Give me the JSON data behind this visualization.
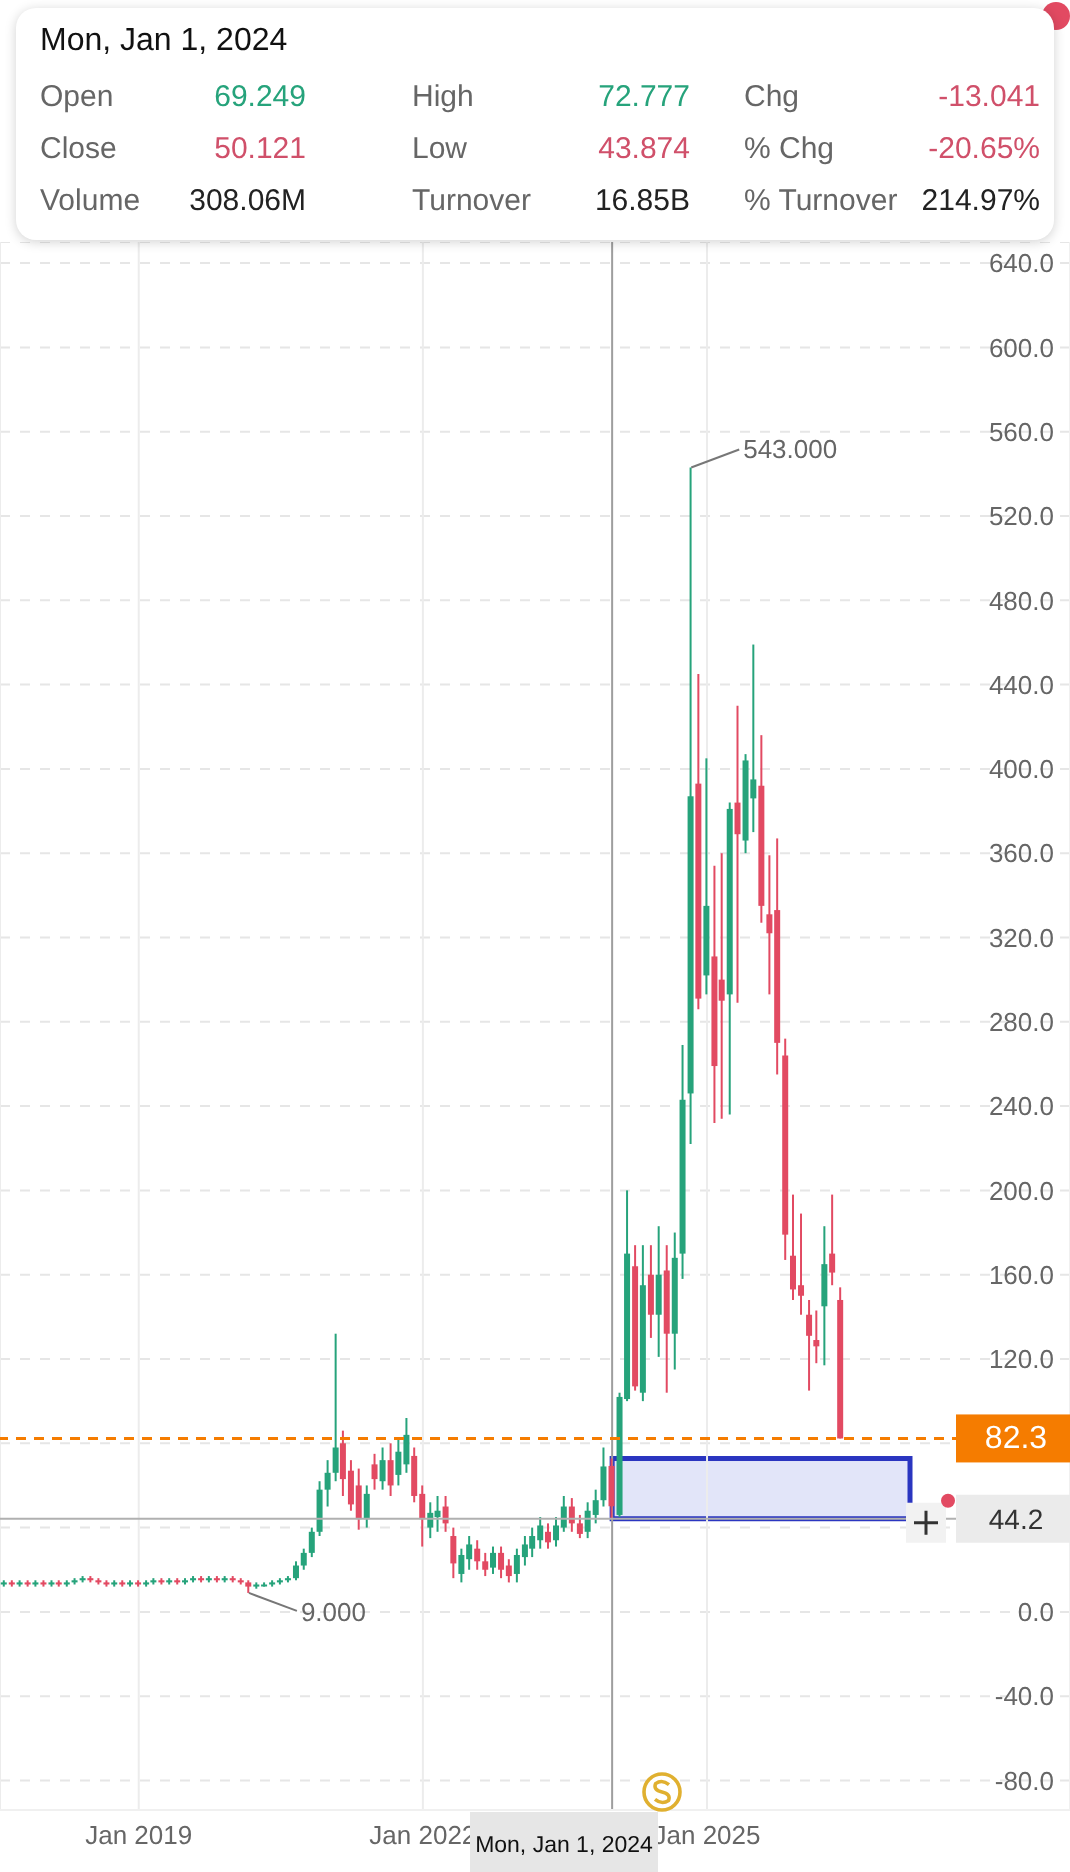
{
  "chart_data": {
    "type": "candlestick",
    "x": [
      "2017-08",
      "2017-09",
      "2017-10",
      "2017-11",
      "2017-12",
      "2018-01",
      "2018-02",
      "2018-03",
      "2018-04",
      "2018-05",
      "2018-06",
      "2018-07",
      "2018-08",
      "2018-09",
      "2018-10",
      "2018-11",
      "2018-12",
      "2019-01",
      "2019-02",
      "2019-03",
      "2019-04",
      "2019-05",
      "2019-06",
      "2019-07",
      "2019-08",
      "2019-09",
      "2019-10",
      "2019-11",
      "2019-12",
      "2020-01",
      "2020-02",
      "2020-03",
      "2020-04",
      "2020-05",
      "2020-06",
      "2020-07",
      "2020-08",
      "2020-09",
      "2020-10",
      "2020-11",
      "2020-12",
      "2021-01",
      "2021-02",
      "2021-03",
      "2021-04",
      "2021-05",
      "2021-06",
      "2021-07",
      "2021-08",
      "2021-09",
      "2021-10",
      "2021-11",
      "2021-12",
      "2022-01",
      "2022-02",
      "2022-03",
      "2022-04",
      "2022-05",
      "2022-06",
      "2022-07",
      "2022-08",
      "2022-09",
      "2022-10",
      "2022-11",
      "2022-12",
      "2023-01",
      "2023-02",
      "2023-03",
      "2023-04",
      "2023-05",
      "2023-06",
      "2023-07",
      "2023-08",
      "2023-09",
      "2023-10",
      "2023-11",
      "2023-12",
      "2024-01",
      "2024-02",
      "2024-03",
      "2024-04",
      "2024-05",
      "2024-06",
      "2024-07",
      "2024-08",
      "2024-09",
      "2024-10",
      "2024-11",
      "2024-12",
      "2025-01",
      "2025-02",
      "2025-03",
      "2025-04",
      "2025-05",
      "2025-06",
      "2025-07",
      "2025-08",
      "2025-09",
      "2025-10",
      "2025-11",
      "2025-12",
      "2026-01",
      "2026-02",
      "2026-03",
      "2026-04",
      "2026-05",
      "2026-06"
    ],
    "ohlc": [
      [
        13,
        15,
        12,
        14
      ],
      [
        14,
        15,
        12,
        13
      ],
      [
        13,
        15,
        12,
        14
      ],
      [
        14,
        15,
        12,
        13
      ],
      [
        13,
        15,
        12,
        14
      ],
      [
        14,
        15,
        12,
        13
      ],
      [
        13,
        15,
        12,
        14
      ],
      [
        14,
        15,
        12,
        13
      ],
      [
        13,
        15,
        12,
        14
      ],
      [
        14,
        16,
        13,
        15
      ],
      [
        15,
        17,
        14,
        16
      ],
      [
        16,
        17,
        14,
        15
      ],
      [
        15,
        16,
        13,
        14
      ],
      [
        14,
        15,
        12,
        13
      ],
      [
        13,
        15,
        12,
        14
      ],
      [
        14,
        15,
        12,
        13
      ],
      [
        13,
        15,
        12,
        14
      ],
      [
        14,
        15,
        12,
        13
      ],
      [
        13,
        15,
        12,
        14
      ],
      [
        14,
        16,
        13,
        15
      ],
      [
        15,
        16,
        13,
        14
      ],
      [
        14,
        16,
        13,
        15
      ],
      [
        15,
        16,
        13,
        14
      ],
      [
        14,
        16,
        13,
        15
      ],
      [
        15,
        17,
        14,
        16
      ],
      [
        16,
        17,
        14,
        15
      ],
      [
        15,
        17,
        14,
        16
      ],
      [
        16,
        17,
        14,
        15
      ],
      [
        15,
        17,
        14,
        16
      ],
      [
        16,
        17,
        14,
        15
      ],
      [
        15,
        16,
        13,
        14
      ],
      [
        14,
        15,
        9,
        12
      ],
      [
        12,
        14,
        11,
        13
      ],
      [
        13,
        14,
        12,
        13
      ],
      [
        13,
        15,
        12,
        14
      ],
      [
        14,
        16,
        13,
        15
      ],
      [
        15,
        17,
        14,
        16
      ],
      [
        16,
        24,
        15,
        22
      ],
      [
        22,
        30,
        20,
        28
      ],
      [
        28,
        40,
        26,
        38
      ],
      [
        38,
        62,
        36,
        58
      ],
      [
        58,
        72,
        50,
        66
      ],
      [
        66,
        132,
        62,
        78
      ],
      [
        80,
        86,
        55,
        63
      ],
      [
        67,
        72,
        48,
        51
      ],
      [
        60,
        68,
        39,
        44
      ],
      [
        44,
        60,
        40,
        56
      ],
      [
        70,
        75,
        58,
        63
      ],
      [
        62,
        78,
        58,
        72
      ],
      [
        72,
        80,
        55,
        60
      ],
      [
        65,
        82,
        60,
        76
      ],
      [
        70,
        92,
        66,
        84
      ],
      [
        74,
        78,
        52,
        55
      ],
      [
        56,
        60,
        31,
        44
      ],
      [
        40,
        52,
        35,
        47
      ],
      [
        45,
        55,
        38,
        48
      ],
      [
        50,
        55,
        38,
        42
      ],
      [
        36,
        40,
        16,
        23
      ],
      [
        18,
        30,
        14,
        27
      ],
      [
        25,
        36,
        20,
        32
      ],
      [
        30,
        34,
        20,
        24
      ],
      [
        24,
        28,
        17,
        20
      ],
      [
        21,
        31,
        18,
        28
      ],
      [
        28,
        31,
        16,
        20
      ],
      [
        22,
        25,
        14,
        17
      ],
      [
        18,
        30,
        14,
        27
      ],
      [
        26,
        36,
        22,
        32
      ],
      [
        30,
        40,
        26,
        36
      ],
      [
        34,
        45,
        30,
        41
      ],
      [
        38,
        42,
        30,
        33
      ],
      [
        34,
        45,
        31,
        41
      ],
      [
        40,
        55,
        38,
        50
      ],
      [
        50,
        54,
        38,
        42
      ],
      [
        42,
        46,
        35,
        37
      ],
      [
        38,
        52,
        35,
        48
      ],
      [
        46,
        58,
        42,
        53
      ],
      [
        53,
        78,
        50,
        69
      ],
      [
        69.249,
        72.777,
        43.874,
        50.121
      ],
      [
        46,
        104,
        45,
        102
      ],
      [
        101,
        200,
        100,
        170
      ],
      [
        164,
        174,
        105,
        107
      ],
      [
        104,
        174,
        100,
        155
      ],
      [
        160,
        174,
        130,
        141
      ],
      [
        141,
        183,
        121,
        160
      ],
      [
        162,
        174,
        104,
        132
      ],
      [
        132,
        180,
        115,
        168
      ],
      [
        170,
        269,
        158,
        243
      ],
      [
        246,
        543,
        222,
        387
      ],
      [
        393,
        445,
        286,
        291
      ],
      [
        302,
        405,
        293,
        335
      ],
      [
        311,
        354,
        232,
        259
      ],
      [
        300,
        360,
        234,
        290
      ],
      [
        293,
        384,
        236,
        381
      ],
      [
        384,
        430,
        289,
        369
      ],
      [
        366,
        407,
        360,
        404
      ],
      [
        386,
        459,
        370,
        395
      ],
      [
        392,
        416,
        327,
        335
      ],
      [
        331,
        359,
        293,
        322
      ],
      [
        333,
        367,
        255,
        270
      ],
      [
        264,
        272,
        167,
        179
      ],
      [
        169,
        198,
        148,
        153
      ],
      [
        155,
        189,
        141,
        150
      ],
      [
        141,
        148,
        105,
        131
      ],
      [
        129,
        143,
        118,
        126
      ],
      [
        145,
        183,
        117,
        165
      ],
      [
        170,
        198,
        155,
        161
      ],
      [
        148,
        154,
        82.3,
        82.3
      ]
    ],
    "colors": [
      "#26a37b",
      "#e24a62",
      "#26a37b",
      "#e24a62",
      "#26a37b",
      "#e24a62",
      "#26a37b",
      "#e24a62",
      "#26a37b",
      "#26a37b",
      "#26a37b",
      "#e24a62",
      "#e24a62",
      "#e24a62",
      "#26a37b",
      "#e24a62",
      "#26a37b",
      "#e24a62",
      "#26a37b",
      "#26a37b",
      "#e24a62",
      "#26a37b",
      "#e24a62",
      "#26a37b",
      "#26a37b",
      "#e24a62",
      "#26a37b",
      "#e24a62",
      "#26a37b",
      "#e24a62",
      "#e24a62",
      "#e24a62",
      "#26a37b",
      "#26a37b",
      "#26a37b",
      "#26a37b",
      "#26a37b",
      "#26a37b",
      "#26a37b",
      "#26a37b",
      "#26a37b",
      "#26a37b",
      "#26a37b",
      "#e24a62",
      "#e24a62",
      "#e24a62",
      "#26a37b",
      "#e24a62",
      "#26a37b",
      "#e24a62",
      "#26a37b",
      "#26a37b",
      "#e24a62",
      "#e24a62",
      "#26a37b",
      "#26a37b",
      "#e24a62",
      "#e24a62",
      "#26a37b",
      "#26a37b",
      "#e24a62",
      "#e24a62",
      "#26a37b",
      "#e24a62",
      "#e24a62",
      "#26a37b",
      "#26a37b",
      "#26a37b",
      "#26a37b",
      "#e24a62",
      "#26a37b",
      "#26a37b",
      "#e24a62",
      "#e24a62",
      "#26a37b",
      "#26a37b",
      "#26a37b",
      "#e24a62",
      "#26a37b",
      "#26a37b",
      "#e24a62",
      "#26a37b",
      "#e24a62",
      "#26a37b",
      "#e24a62",
      "#26a37b",
      "#26a37b",
      "#26a37b",
      "#e24a62",
      "#26a37b",
      "#e24a62",
      "#e24a62",
      "#26a37b",
      "#e24a62",
      "#26a37b",
      "#26a37b",
      "#e24a62",
      "#e24a62",
      "#e24a62",
      "#e24a62",
      "#e24a62",
      "#e24a62",
      "#e24a62",
      "#e24a62",
      "#26a37b",
      "#e24a62",
      "#e24a62"
    ],
    "xlim": [
      "2017-07-15",
      "2028-11-01"
    ],
    "xticks": [
      {
        "value": "2019-01",
        "label": "Jan 2019"
      },
      {
        "value": "2022-01",
        "label": "Jan 2022"
      },
      {
        "value": "2025-01",
        "label": "Jan 2025"
      }
    ],
    "ylim": [
      -94,
      650
    ],
    "yticks": [
      {
        "value": -80,
        "label": "-80.0"
      },
      {
        "value": -40,
        "label": "-40.0"
      },
      {
        "value": 0,
        "label": "0.0"
      },
      {
        "value": 40,
        "label": null
      },
      {
        "value": 80,
        "label": null
      },
      {
        "value": 120,
        "label": "120.0"
      },
      {
        "value": 160,
        "label": "160.0"
      },
      {
        "value": 200,
        "label": "200.0"
      },
      {
        "value": 240,
        "label": "240.0"
      },
      {
        "value": 280,
        "label": "280.0"
      },
      {
        "value": 320,
        "label": "320.0"
      },
      {
        "value": 360,
        "label": "360.0"
      },
      {
        "value": 400,
        "label": "400.0"
      },
      {
        "value": 440,
        "label": "440.0"
      },
      {
        "value": 480,
        "label": "480.0"
      },
      {
        "value": 520,
        "label": "520.0"
      },
      {
        "value": 560,
        "label": "560.0"
      },
      {
        "value": 600,
        "label": "600.0"
      },
      {
        "value": 640,
        "label": "640.0"
      }
    ],
    "grid": true,
    "ref_lines": [
      {
        "axis": "y",
        "value": 82.3,
        "label": "82.3",
        "color": "#f57c00",
        "line_style": "dashed"
      },
      {
        "axis": "y",
        "value": 44.2,
        "label": "44.2",
        "color": "#b0b0b0"
      },
      {
        "axis": "x",
        "value": "2024-01",
        "label": "Mon, Jan 1, 2024",
        "color": "#9e9e9e"
      }
    ],
    "annotations": [
      "Mon, Jan 1, 2024",
      "Open",
      "69.249",
      "High",
      "72.777",
      "Chg",
      "-13.041",
      "Close",
      "50.121",
      "Low",
      "43.874",
      "% Chg",
      "-20.65%",
      "Volume",
      "308.06M",
      "Turnover",
      "16.85B",
      "% Turnover",
      "214.97%",
      {
        "text": "543.000",
        "x": "2024-11",
        "y": 543
      },
      {
        "text": "9.000",
        "x": "2020-03",
        "y": 9
      }
    ]
  }
}
